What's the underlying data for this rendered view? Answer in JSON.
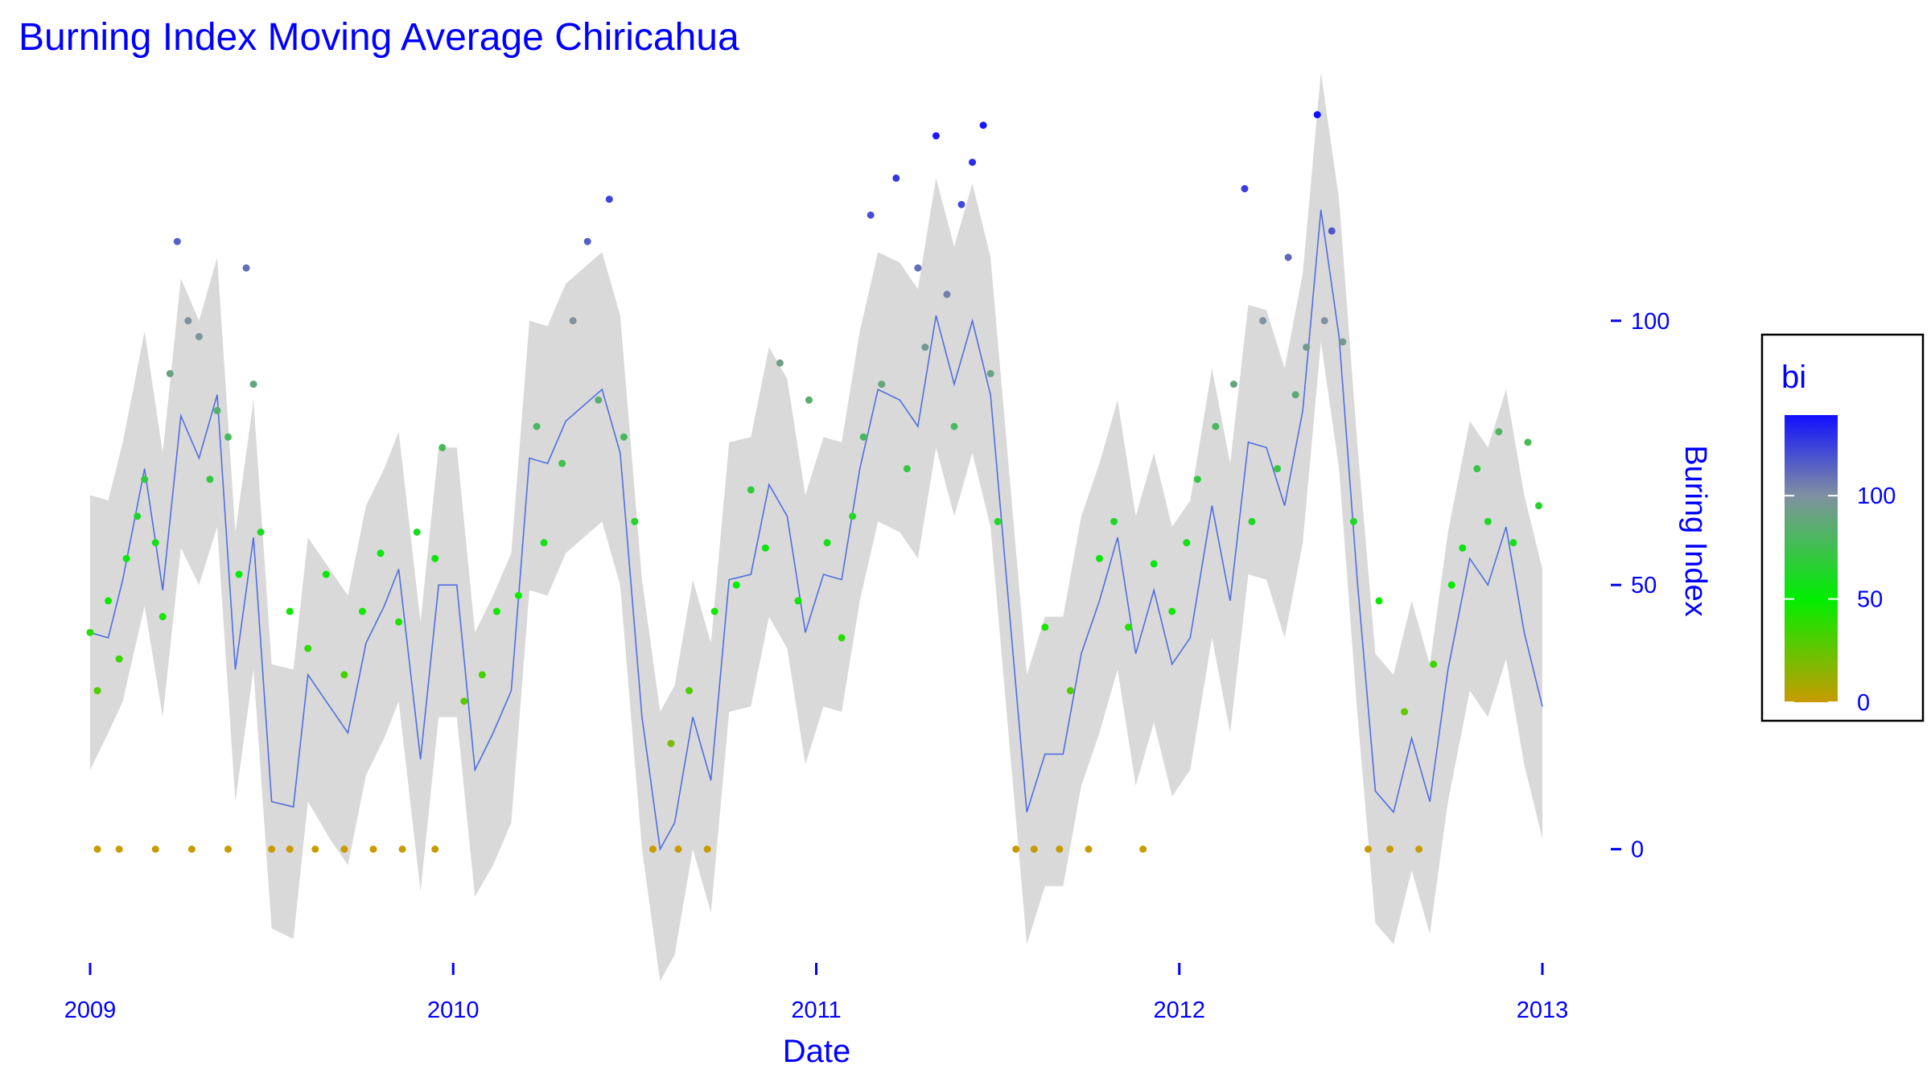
{
  "chart_data": {
    "type": "scatter",
    "title": "Burning Index Moving Average Chiricahua",
    "xlabel": "Date",
    "ylabel": "Buring Index",
    "xlim": [
      2009,
      2013
    ],
    "xticks": [
      2009,
      2010,
      2011,
      2012,
      2013
    ],
    "ylim": [
      -20,
      140
    ],
    "yticks": [
      0,
      50,
      100
    ],
    "band_color": "#d9d9d9",
    "moving_average": {
      "color": "#4f6fe0",
      "x": [
        2009.0,
        2009.05,
        2009.09,
        2009.15,
        2009.2,
        2009.25,
        2009.3,
        2009.35,
        2009.4,
        2009.45,
        2009.5,
        2009.56,
        2009.6,
        2009.66,
        2009.71,
        2009.76,
        2009.81,
        2009.85,
        2009.91,
        2009.96,
        2010.01,
        2010.06,
        2010.11,
        2010.16,
        2010.21,
        2010.26,
        2010.31,
        2010.41,
        2010.46,
        2010.52,
        2010.57,
        2010.61,
        2010.66,
        2010.71,
        2010.76,
        2010.82,
        2010.87,
        2010.92,
        2010.97,
        2011.02,
        2011.07,
        2011.12,
        2011.17,
        2011.23,
        2011.28,
        2011.33,
        2011.38,
        2011.43,
        2011.48,
        2011.58,
        2011.63,
        2011.68,
        2011.73,
        2011.78,
        2011.83,
        2011.88,
        2011.93,
        2011.98,
        2012.03,
        2012.09,
        2012.14,
        2012.19,
        2012.24,
        2012.29,
        2012.34,
        2012.39,
        2012.44,
        2012.49,
        2012.54,
        2012.59,
        2012.64,
        2012.69,
        2012.74,
        2012.8,
        2012.85,
        2012.9,
        2012.95,
        2013.0
      ],
      "values": [
        41,
        40,
        51,
        72,
        49,
        82,
        74,
        86,
        34,
        59,
        9,
        8,
        33,
        27,
        22,
        39,
        46,
        53,
        17,
        50,
        50,
        15,
        22,
        30,
        74,
        73,
        81,
        87,
        75,
        25,
        0,
        5,
        25,
        13,
        51,
        52,
        69,
        63,
        41,
        52,
        51,
        72,
        87,
        85,
        80,
        101,
        88,
        100,
        86,
        7,
        18,
        18,
        37,
        47,
        59,
        37,
        49,
        35,
        40,
        65,
        47,
        77,
        76,
        65,
        83,
        121,
        97,
        51,
        11,
        7,
        21,
        9,
        34,
        55,
        50,
        61,
        41,
        27
      ],
      "lower": [
        15,
        22,
        28,
        46,
        25,
        57,
        50,
        61,
        9,
        34,
        -15,
        -17,
        9,
        2,
        -3,
        14,
        21,
        28,
        -8,
        25,
        25,
        -9,
        -3,
        5,
        49,
        48,
        56,
        62,
        50,
        0,
        -25,
        -20,
        0,
        -12,
        26,
        27,
        44,
        38,
        16,
        27,
        26,
        47,
        62,
        60,
        55,
        76,
        63,
        75,
        61,
        -18,
        -7,
        -7,
        12,
        22,
        34,
        12,
        24,
        10,
        15,
        40,
        22,
        52,
        51,
        40,
        58,
        96,
        72,
        26,
        -14,
        -18,
        -4,
        -16,
        9,
        30,
        25,
        36,
        16,
        2
      ],
      "upper": [
        67,
        66,
        77,
        98,
        75,
        108,
        100,
        112,
        60,
        85,
        35,
        34,
        59,
        53,
        48,
        65,
        72,
        79,
        43,
        76,
        76,
        41,
        48,
        56,
        100,
        99,
        107,
        113,
        101,
        51,
        26,
        31,
        51,
        39,
        77,
        78,
        95,
        89,
        67,
        78,
        77,
        98,
        113,
        111,
        106,
        127,
        114,
        126,
        112,
        33,
        44,
        44,
        63,
        73,
        85,
        63,
        75,
        61,
        66,
        91,
        73,
        103,
        102,
        91,
        109,
        147,
        123,
        77,
        37,
        33,
        47,
        35,
        60,
        81,
        76,
        87,
        67,
        53
      ]
    },
    "points": {
      "x": [
        2009.0,
        2009.02,
        2009.05,
        2009.08,
        2009.1,
        2009.13,
        2009.15,
        2009.18,
        2009.2,
        2009.22,
        2009.24,
        2009.27,
        2009.3,
        2009.33,
        2009.35,
        2009.38,
        2009.41,
        2009.43,
        2009.45,
        2009.47,
        2009.02,
        2009.08,
        2009.18,
        2009.28,
        2009.38,
        2009.5,
        2009.55,
        2009.62,
        2009.7,
        2009.78,
        2009.86,
        2009.95,
        2009.55,
        2009.6,
        2009.65,
        2009.7,
        2009.75,
        2009.8,
        2009.85,
        2009.9,
        2009.95,
        2009.97,
        2010.03,
        2010.08,
        2010.12,
        2010.18,
        2010.23,
        2010.25,
        2010.3,
        2010.33,
        2010.37,
        2010.4,
        2010.43,
        2010.47,
        2010.5,
        2010.55,
        2010.6,
        2010.62,
        2010.65,
        2010.7,
        2010.72,
        2010.78,
        2010.82,
        2010.86,
        2010.9,
        2010.95,
        2010.98,
        2011.03,
        2011.07,
        2011.1,
        2011.13,
        2011.15,
        2011.18,
        2011.22,
        2011.25,
        2011.28,
        2011.3,
        2011.33,
        2011.36,
        2011.38,
        2011.4,
        2011.43,
        2011.46,
        2011.48,
        2011.5,
        2011.55,
        2011.6,
        2011.63,
        2011.67,
        2011.7,
        2011.75,
        2011.78,
        2011.82,
        2011.86,
        2011.9,
        2011.93,
        2011.98,
        2012.02,
        2012.05,
        2012.1,
        2012.15,
        2012.18,
        2012.2,
        2012.23,
        2012.27,
        2012.3,
        2012.32,
        2012.35,
        2012.38,
        2012.4,
        2012.42,
        2012.45,
        2012.48,
        2012.52,
        2012.55,
        2012.58,
        2012.62,
        2012.66,
        2012.7,
        2012.75,
        2012.78,
        2012.82,
        2012.85,
        2012.88,
        2012.92,
        2012.96,
        2012.99
      ],
      "values": [
        41,
        30,
        47,
        36,
        55,
        63,
        70,
        58,
        44,
        90,
        115,
        100,
        97,
        70,
        83,
        78,
        52,
        110,
        88,
        60,
        0,
        0,
        0,
        0,
        0,
        0,
        0,
        0,
        0,
        0,
        0,
        0,
        45,
        38,
        52,
        33,
        45,
        56,
        43,
        60,
        55,
        76,
        28,
        33,
        45,
        48,
        80,
        58,
        73,
        100,
        115,
        85,
        123,
        78,
        62,
        0,
        20,
        0,
        30,
        0,
        45,
        50,
        68,
        57,
        92,
        47,
        85,
        58,
        40,
        63,
        78,
        120,
        88,
        127,
        72,
        110,
        95,
        135,
        105,
        80,
        122,
        130,
        137,
        90,
        62,
        0,
        0,
        42,
        0,
        30,
        0,
        55,
        62,
        42,
        0,
        54,
        45,
        58,
        70,
        80,
        88,
        125,
        62,
        100,
        72,
        112,
        86,
        95,
        139,
        100,
        117,
        96,
        62,
        0,
        47,
        0,
        26,
        0,
        35,
        50,
        57,
        72,
        62,
        79,
        58,
        77,
        65
      ]
    },
    "colorbar": {
      "title": "bi",
      "lim": [
        0,
        139
      ],
      "ticks": [
        0,
        50,
        100
      ],
      "stops": [
        {
          "value": 0,
          "color": "#c89b00"
        },
        {
          "value": 50,
          "color": "#00ee00"
        },
        {
          "value": 100,
          "color": "#8090a0"
        },
        {
          "value": 139,
          "color": "#1010ff"
        }
      ]
    }
  }
}
